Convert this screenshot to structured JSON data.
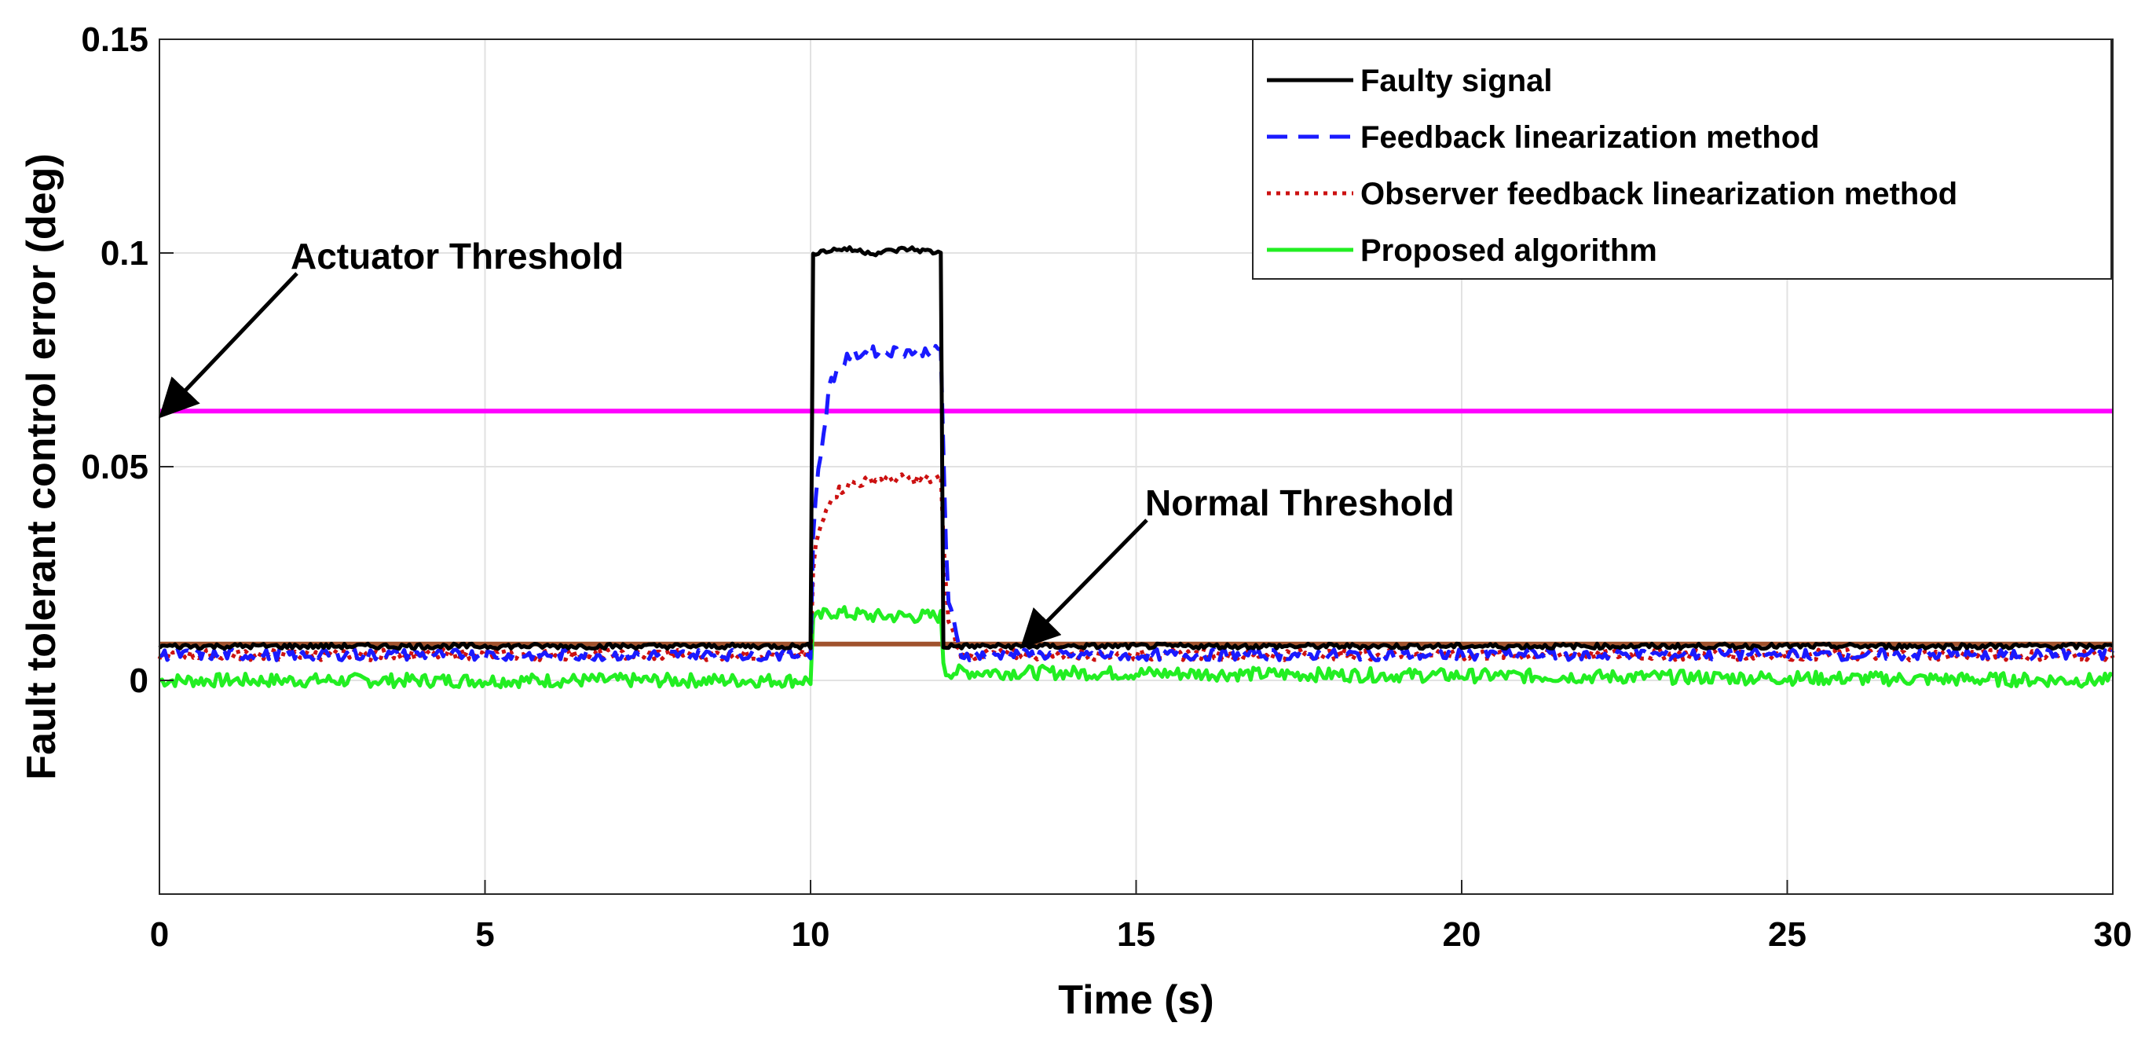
{
  "chart_data": {
    "type": "line",
    "title": "",
    "xlabel": "Time (s)",
    "ylabel": "Fault tolerant control error (deg)",
    "xlim": [
      0,
      30
    ],
    "ylim": [
      -0.05,
      0.15
    ],
    "xticks": [
      0,
      5,
      10,
      15,
      20,
      25,
      30
    ],
    "xtick_labels": [
      "0",
      "5",
      "10",
      "15",
      "20",
      "25",
      "30"
    ],
    "yticks": [
      0,
      0.05,
      0.1,
      0.15
    ],
    "ytick_labels": [
      "0",
      "0.05",
      "0.1",
      "0.15"
    ],
    "grid": true,
    "legend_position": "top-right",
    "series": [
      {
        "name": "Faulty signal",
        "color": "#000000",
        "style": "solid",
        "x": [
          0,
          10,
          10.01,
          10.5,
          11,
          11.5,
          12,
          12.01,
          30
        ],
        "y": [
          0.008,
          0.008,
          0.1,
          0.101,
          0.1,
          0.101,
          0.1,
          0.008,
          0.008
        ]
      },
      {
        "name": "Feedback linearization method",
        "color": "#1a1aff",
        "style": "dashed",
        "x": [
          0,
          10,
          10.05,
          10.3,
          10.6,
          11,
          12,
          12.1,
          12.3,
          30
        ],
        "y": [
          0.006,
          0.006,
          0.04,
          0.07,
          0.076,
          0.077,
          0.077,
          0.02,
          0.006,
          0.006
        ]
      },
      {
        "name": "Observer feedback linearization method",
        "color": "#cc1111",
        "style": "dotted",
        "x": [
          0,
          10,
          10.05,
          10.3,
          10.6,
          11,
          12,
          12.1,
          12.3,
          30
        ],
        "y": [
          0.006,
          0.006,
          0.03,
          0.043,
          0.046,
          0.047,
          0.047,
          0.015,
          0.006,
          0.006
        ]
      },
      {
        "name": "Proposed algorithm",
        "color": "#22ee22",
        "style": "solid",
        "x": [
          0,
          10,
          10.02,
          10.3,
          11,
          12,
          12.05,
          30
        ],
        "y": [
          0.0,
          0.0,
          0.014,
          0.016,
          0.015,
          0.015,
          0.002,
          0.0
        ]
      }
    ],
    "reference_lines": [
      {
        "name": "Actuator Threshold",
        "y": 0.063,
        "color": "#ff00ff"
      },
      {
        "name": "Normal Threshold",
        "y": 0.0085,
        "color": "#a0522d"
      }
    ],
    "annotations": [
      {
        "text": "Actuator Threshold",
        "x": 0,
        "y": 0.063
      },
      {
        "text": "Normal Threshold",
        "x": 13.3,
        "y": 0.009
      }
    ]
  }
}
